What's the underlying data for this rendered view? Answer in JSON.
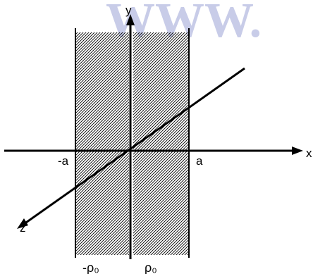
{
  "watermark": {
    "text": "WWW.",
    "color": "#c8cce8"
  },
  "axes": {
    "x": "x",
    "y": "y",
    "z": "z"
  },
  "ticks": {
    "neg_a": "-a",
    "pos_a": "a"
  },
  "regions": {
    "left_charge": "-ρ₀",
    "right_charge": "ρ₀"
  },
  "colors": {
    "ink": "#000000",
    "background": "#ffffff"
  }
}
